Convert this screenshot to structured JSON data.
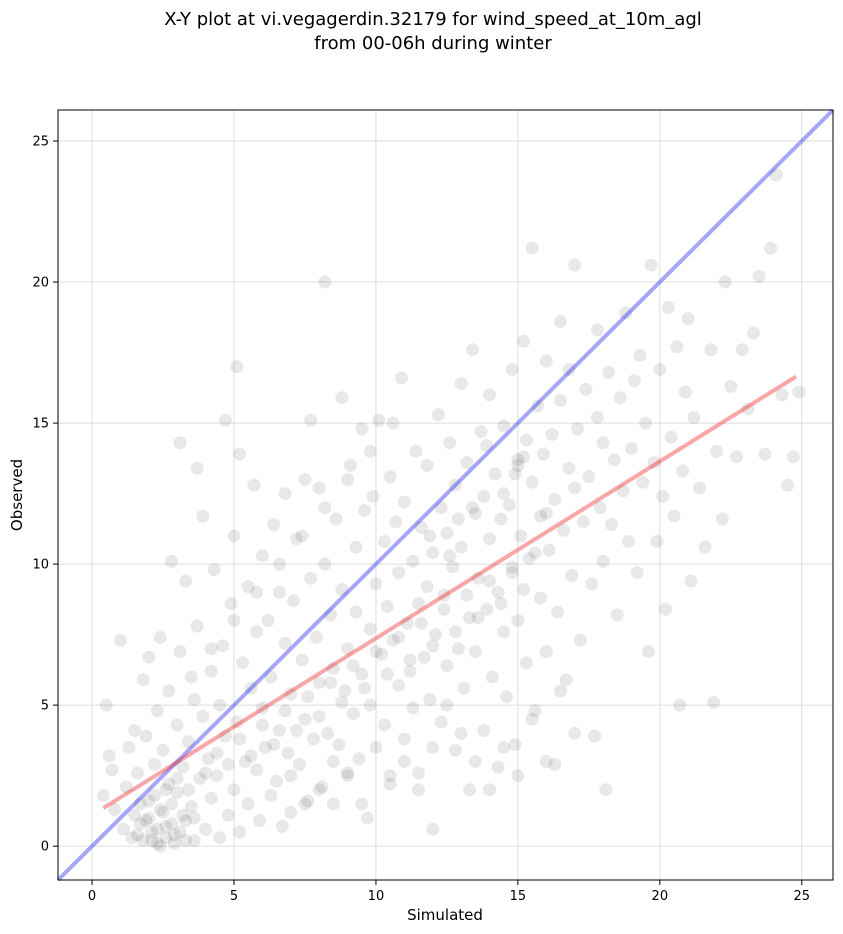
{
  "chart_data": {
    "type": "scatter",
    "title_line1": "X-Y plot at vi.vegagerdin.32179 for wind_speed_at_10m_agl",
    "title_line2": "from 00-06h during winter",
    "xlabel": "Simulated",
    "ylabel": "Observed",
    "xlim": [
      -1.2,
      26.1
    ],
    "ylim": [
      -1.2,
      26.1
    ],
    "xticks": [
      0,
      5,
      10,
      15,
      20,
      25
    ],
    "yticks": [
      0,
      5,
      10,
      15,
      20,
      25
    ],
    "grid": true,
    "colors": {
      "points": "#000000",
      "identity_line": "#0000ee",
      "fit_line": "#ee0000",
      "grid": "#dddddd"
    },
    "identity_line": {
      "x": [
        -1.2,
        26.1
      ],
      "y": [
        -1.2,
        26.1
      ]
    },
    "fit_line": {
      "x": [
        0.4,
        24.8
      ],
      "y": [
        1.35,
        16.65
      ]
    },
    "points": [
      [
        0.4,
        1.8
      ],
      [
        0.5,
        5.0
      ],
      [
        0.6,
        3.2
      ],
      [
        0.7,
        2.7
      ],
      [
        0.8,
        1.3
      ],
      [
        1.0,
        7.3
      ],
      [
        1.1,
        0.6
      ],
      [
        1.2,
        2.1
      ],
      [
        1.3,
        3.5
      ],
      [
        1.4,
        0.3
      ],
      [
        1.5,
        4.1
      ],
      [
        1.5,
        1.1
      ],
      [
        1.6,
        2.6
      ],
      [
        1.7,
        0.8
      ],
      [
        1.8,
        5.9
      ],
      [
        1.8,
        0.2
      ],
      [
        1.9,
        3.9
      ],
      [
        2.0,
        1.6
      ],
      [
        2.0,
        6.7
      ],
      [
        2.1,
        0.5
      ],
      [
        2.2,
        2.9
      ],
      [
        2.3,
        4.8
      ],
      [
        2.3,
        0.1
      ],
      [
        2.4,
        7.4
      ],
      [
        2.5,
        1.2
      ],
      [
        2.5,
        3.4
      ],
      [
        2.6,
        0.7
      ],
      [
        2.7,
        5.5
      ],
      [
        2.7,
        2.2
      ],
      [
        2.8,
        10.1
      ],
      [
        2.9,
        0.4
      ],
      [
        3.0,
        4.3
      ],
      [
        3.0,
        1.9
      ],
      [
        3.1,
        14.3
      ],
      [
        3.1,
        6.9
      ],
      [
        3.2,
        2.8
      ],
      [
        3.3,
        0.9
      ],
      [
        3.3,
        9.4
      ],
      [
        3.4,
        3.7
      ],
      [
        3.5,
        1.4
      ],
      [
        3.6,
        5.2
      ],
      [
        3.6,
        0.2
      ],
      [
        3.7,
        7.8
      ],
      [
        3.7,
        13.4
      ],
      [
        3.8,
        2.4
      ],
      [
        3.9,
        4.6
      ],
      [
        3.9,
        11.7
      ],
      [
        4.0,
        0.6
      ],
      [
        4.1,
        3.1
      ],
      [
        4.2,
        6.2
      ],
      [
        4.2,
        1.7
      ],
      [
        4.3,
        9.8
      ],
      [
        4.4,
        2.5
      ],
      [
        4.5,
        5.0
      ],
      [
        4.5,
        0.3
      ],
      [
        4.6,
        7.1
      ],
      [
        4.7,
        15.1
      ],
      [
        4.7,
        3.9
      ],
      [
        4.8,
        1.1
      ],
      [
        4.9,
        8.6
      ],
      [
        5.0,
        2.0
      ],
      [
        5.0,
        11.0
      ],
      [
        5.1,
        4.4
      ],
      [
        5.1,
        17.0
      ],
      [
        5.2,
        0.5
      ],
      [
        5.2,
        13.9
      ],
      [
        5.3,
        6.5
      ],
      [
        5.4,
        3.0
      ],
      [
        5.5,
        9.2
      ],
      [
        5.5,
        1.5
      ],
      [
        5.6,
        5.6
      ],
      [
        5.7,
        12.8
      ],
      [
        5.8,
        2.7
      ],
      [
        5.8,
        7.6
      ],
      [
        5.9,
        0.9
      ],
      [
        6.0,
        4.9
      ],
      [
        6.0,
        10.3
      ],
      [
        6.1,
        3.5
      ],
      [
        6.2,
        8.0
      ],
      [
        6.3,
        1.8
      ],
      [
        6.3,
        6.0
      ],
      [
        6.4,
        11.4
      ],
      [
        6.5,
        2.3
      ],
      [
        6.6,
        4.1
      ],
      [
        6.6,
        9.0
      ],
      [
        6.7,
        0.7
      ],
      [
        6.8,
        7.2
      ],
      [
        6.8,
        12.5
      ],
      [
        6.9,
        3.3
      ],
      [
        7.0,
        5.4
      ],
      [
        7.0,
        1.2
      ],
      [
        7.1,
        8.7
      ],
      [
        7.2,
        10.9
      ],
      [
        7.3,
        2.9
      ],
      [
        7.4,
        6.6
      ],
      [
        7.5,
        4.5
      ],
      [
        7.5,
        13.0
      ],
      [
        7.6,
        1.6
      ],
      [
        7.7,
        9.5
      ],
      [
        7.7,
        15.1
      ],
      [
        7.8,
        3.8
      ],
      [
        7.9,
        7.4
      ],
      [
        8.0,
        5.8
      ],
      [
        8.0,
        12.7
      ],
      [
        8.1,
        2.1
      ],
      [
        8.2,
        20.0
      ],
      [
        8.2,
        10.0
      ],
      [
        8.3,
        4.0
      ],
      [
        8.4,
        8.2
      ],
      [
        8.5,
        6.3
      ],
      [
        8.5,
        1.5
      ],
      [
        8.6,
        11.6
      ],
      [
        8.7,
        3.6
      ],
      [
        8.8,
        9.1
      ],
      [
        8.8,
        15.9
      ],
      [
        8.9,
        5.5
      ],
      [
        9.0,
        7.0
      ],
      [
        9.0,
        2.6
      ],
      [
        9.1,
        13.5
      ],
      [
        9.2,
        4.7
      ],
      [
        9.3,
        10.6
      ],
      [
        9.3,
        8.3
      ],
      [
        9.4,
        3.1
      ],
      [
        9.5,
        6.1
      ],
      [
        9.5,
        14.8
      ],
      [
        9.6,
        11.9
      ],
      [
        9.7,
        1.0
      ],
      [
        9.8,
        7.7
      ],
      [
        9.8,
        5.0
      ],
      [
        9.9,
        12.4
      ],
      [
        10.0,
        9.3
      ],
      [
        10.0,
        3.5
      ],
      [
        10.1,
        15.1
      ],
      [
        10.2,
        6.8
      ],
      [
        10.3,
        10.8
      ],
      [
        10.3,
        4.3
      ],
      [
        10.4,
        8.5
      ],
      [
        10.5,
        13.1
      ],
      [
        10.5,
        2.2
      ],
      [
        10.6,
        7.3
      ],
      [
        10.7,
        11.5
      ],
      [
        10.8,
        5.7
      ],
      [
        10.8,
        9.7
      ],
      [
        10.9,
        16.6
      ],
      [
        11.0,
        3.8
      ],
      [
        11.0,
        12.2
      ],
      [
        11.1,
        7.9
      ],
      [
        11.2,
        6.2
      ],
      [
        11.3,
        10.1
      ],
      [
        11.3,
        4.9
      ],
      [
        11.4,
        14.0
      ],
      [
        11.5,
        8.6
      ],
      [
        11.5,
        2.6
      ],
      [
        11.6,
        11.3
      ],
      [
        11.7,
        6.7
      ],
      [
        11.8,
        9.2
      ],
      [
        11.8,
        13.5
      ],
      [
        11.9,
        5.2
      ],
      [
        12.0,
        10.4
      ],
      [
        12.0,
        0.6
      ],
      [
        12.1,
        7.5
      ],
      [
        12.2,
        15.3
      ],
      [
        12.3,
        12.0
      ],
      [
        12.3,
        4.4
      ],
      [
        12.4,
        8.9
      ],
      [
        12.5,
        11.1
      ],
      [
        12.5,
        6.4
      ],
      [
        12.6,
        14.3
      ],
      [
        12.7,
        9.9
      ],
      [
        12.8,
        3.4
      ],
      [
        12.8,
        12.8
      ],
      [
        12.9,
        7.0
      ],
      [
        13.0,
        16.4
      ],
      [
        13.0,
        10.6
      ],
      [
        13.1,
        5.6
      ],
      [
        13.2,
        13.6
      ],
      [
        13.3,
        8.1
      ],
      [
        13.3,
        2.0
      ],
      [
        13.4,
        17.6
      ],
      [
        13.5,
        11.8
      ],
      [
        13.5,
        6.9
      ],
      [
        13.6,
        9.5
      ],
      [
        13.7,
        14.7
      ],
      [
        13.8,
        4.1
      ],
      [
        13.8,
        12.4
      ],
      [
        13.9,
        8.4
      ],
      [
        14.0,
        10.9
      ],
      [
        14.0,
        16.0
      ],
      [
        14.1,
        6.0
      ],
      [
        14.2,
        13.2
      ],
      [
        14.3,
        9.0
      ],
      [
        14.3,
        2.8
      ],
      [
        14.4,
        11.6
      ],
      [
        14.5,
        7.6
      ],
      [
        14.5,
        14.9
      ],
      [
        14.6,
        5.3
      ],
      [
        14.7,
        12.1
      ],
      [
        14.8,
        9.7
      ],
      [
        14.8,
        16.9
      ],
      [
        14.9,
        3.6
      ],
      [
        15.0,
        13.7
      ],
      [
        15.0,
        8.0
      ],
      [
        15.1,
        11.0
      ],
      [
        15.2,
        17.9
      ],
      [
        15.3,
        6.5
      ],
      [
        15.3,
        14.4
      ],
      [
        15.4,
        10.2
      ],
      [
        15.5,
        12.9
      ],
      [
        15.5,
        21.2
      ],
      [
        15.6,
        4.8
      ],
      [
        15.7,
        15.6
      ],
      [
        15.8,
        8.8
      ],
      [
        15.8,
        11.7
      ],
      [
        15.9,
        13.9
      ],
      [
        16.0,
        6.9
      ],
      [
        16.0,
        17.2
      ],
      [
        16.1,
        10.5
      ],
      [
        16.2,
        14.6
      ],
      [
        16.3,
        2.9
      ],
      [
        16.3,
        12.3
      ],
      [
        16.4,
        8.3
      ],
      [
        16.5,
        15.8
      ],
      [
        16.5,
        18.6
      ],
      [
        16.6,
        11.2
      ],
      [
        16.7,
        5.9
      ],
      [
        16.8,
        13.4
      ],
      [
        16.8,
        16.9
      ],
      [
        16.9,
        9.6
      ],
      [
        17.0,
        12.7
      ],
      [
        17.0,
        20.6
      ],
      [
        17.1,
        14.8
      ],
      [
        17.2,
        7.3
      ],
      [
        17.3,
        11.5
      ],
      [
        17.4,
        16.2
      ],
      [
        17.5,
        13.1
      ],
      [
        17.6,
        9.3
      ],
      [
        17.7,
        3.9
      ],
      [
        17.8,
        15.2
      ],
      [
        17.8,
        18.3
      ],
      [
        17.9,
        12.0
      ],
      [
        18.0,
        10.1
      ],
      [
        18.0,
        14.3
      ],
      [
        18.1,
        2.0
      ],
      [
        18.2,
        16.8
      ],
      [
        18.3,
        11.4
      ],
      [
        18.4,
        13.7
      ],
      [
        18.5,
        8.2
      ],
      [
        18.6,
        15.9
      ],
      [
        18.7,
        12.6
      ],
      [
        18.8,
        18.9
      ],
      [
        18.9,
        10.8
      ],
      [
        19.0,
        14.1
      ],
      [
        19.1,
        16.5
      ],
      [
        19.2,
        9.7
      ],
      [
        19.3,
        17.4
      ],
      [
        19.4,
        12.9
      ],
      [
        19.5,
        15.0
      ],
      [
        19.6,
        6.9
      ],
      [
        19.7,
        20.6
      ],
      [
        19.8,
        13.6
      ],
      [
        19.9,
        10.8
      ],
      [
        20.0,
        16.9
      ],
      [
        20.1,
        12.4
      ],
      [
        20.2,
        8.4
      ],
      [
        20.3,
        19.1
      ],
      [
        20.4,
        14.5
      ],
      [
        20.5,
        11.7
      ],
      [
        20.6,
        17.7
      ],
      [
        20.7,
        5.0
      ],
      [
        20.8,
        13.3
      ],
      [
        20.9,
        16.1
      ],
      [
        21.0,
        18.7
      ],
      [
        21.1,
        9.4
      ],
      [
        21.2,
        15.2
      ],
      [
        21.4,
        12.7
      ],
      [
        21.6,
        10.6
      ],
      [
        21.8,
        17.6
      ],
      [
        21.9,
        5.1
      ],
      [
        22.0,
        14.0
      ],
      [
        22.2,
        11.6
      ],
      [
        22.3,
        20.0
      ],
      [
        22.5,
        16.3
      ],
      [
        22.7,
        13.8
      ],
      [
        22.9,
        17.6
      ],
      [
        23.1,
        15.5
      ],
      [
        23.3,
        18.2
      ],
      [
        23.5,
        20.2
      ],
      [
        23.7,
        13.9
      ],
      [
        23.9,
        21.2
      ],
      [
        24.1,
        23.8
      ],
      [
        24.3,
        16.0
      ],
      [
        24.5,
        12.8
      ],
      [
        24.7,
        13.8
      ],
      [
        24.9,
        16.1
      ],
      [
        1.6,
        0.4
      ],
      [
        1.9,
        0.9
      ],
      [
        2.1,
        0.2
      ],
      [
        2.3,
        0.6
      ],
      [
        2.4,
        0.0
      ],
      [
        2.6,
        0.3
      ],
      [
        2.8,
        0.8
      ],
      [
        2.9,
        0.1
      ],
      [
        3.1,
        0.5
      ],
      [
        3.3,
        0.2
      ],
      [
        1.7,
        1.5
      ],
      [
        2.0,
        1.0
      ],
      [
        2.2,
        1.8
      ],
      [
        2.4,
        1.3
      ],
      [
        2.6,
        2.0
      ],
      [
        2.8,
        1.5
      ],
      [
        3.0,
        2.4
      ],
      [
        3.2,
        1.1
      ],
      [
        3.4,
        2.0
      ],
      [
        3.6,
        1.0
      ],
      [
        4.0,
        2.6
      ],
      [
        4.4,
        3.3
      ],
      [
        4.8,
        2.9
      ],
      [
        5.2,
        3.8
      ],
      [
        5.6,
        3.2
      ],
      [
        6.0,
        4.3
      ],
      [
        6.4,
        3.6
      ],
      [
        6.8,
        4.8
      ],
      [
        7.2,
        4.1
      ],
      [
        7.6,
        5.3
      ],
      [
        8.0,
        4.6
      ],
      [
        8.4,
        5.8
      ],
      [
        8.8,
        5.1
      ],
      [
        9.2,
        6.4
      ],
      [
        9.6,
        5.6
      ],
      [
        10.0,
        6.9
      ],
      [
        10.4,
        6.1
      ],
      [
        10.8,
        7.4
      ],
      [
        11.2,
        6.6
      ],
      [
        11.6,
        7.9
      ],
      [
        12.0,
        7.1
      ],
      [
        12.4,
        8.4
      ],
      [
        12.8,
        7.6
      ],
      [
        13.2,
        8.9
      ],
      [
        13.6,
        8.1
      ],
      [
        14.0,
        9.4
      ],
      [
        14.4,
        8.6
      ],
      [
        14.8,
        9.9
      ],
      [
        15.2,
        9.1
      ],
      [
        15.6,
        10.4
      ],
      [
        3.5,
        6.0
      ],
      [
        4.2,
        7.0
      ],
      [
        5.0,
        8.0
      ],
      [
        5.8,
        9.0
      ],
      [
        6.6,
        10.0
      ],
      [
        7.4,
        11.0
      ],
      [
        8.2,
        12.0
      ],
      [
        9.0,
        13.0
      ],
      [
        9.8,
        14.0
      ],
      [
        10.6,
        15.0
      ],
      [
        12.5,
        5.0
      ],
      [
        13.0,
        4.0
      ],
      [
        13.5,
        3.0
      ],
      [
        14.0,
        2.0
      ],
      [
        14.5,
        3.5
      ],
      [
        15.0,
        2.5
      ],
      [
        15.5,
        4.5
      ],
      [
        16.0,
        3.0
      ],
      [
        16.5,
        5.5
      ],
      [
        17.0,
        4.0
      ],
      [
        10.5,
        2.5
      ],
      [
        11.0,
        3.0
      ],
      [
        11.5,
        2.0
      ],
      [
        12.0,
        3.5
      ],
      [
        9.5,
        1.5
      ],
      [
        9.0,
        2.5
      ],
      [
        8.5,
        3.0
      ],
      [
        8.0,
        2.0
      ],
      [
        7.5,
        1.5
      ],
      [
        7.0,
        2.5
      ],
      [
        15.0,
        13.5
      ],
      [
        15.2,
        13.8
      ],
      [
        14.9,
        13.2
      ],
      [
        16.0,
        11.8
      ],
      [
        14.5,
        12.5
      ],
      [
        13.9,
        14.2
      ],
      [
        13.4,
        12.0
      ],
      [
        12.9,
        11.6
      ],
      [
        12.6,
        10.3
      ],
      [
        11.9,
        11.0
      ]
    ]
  }
}
